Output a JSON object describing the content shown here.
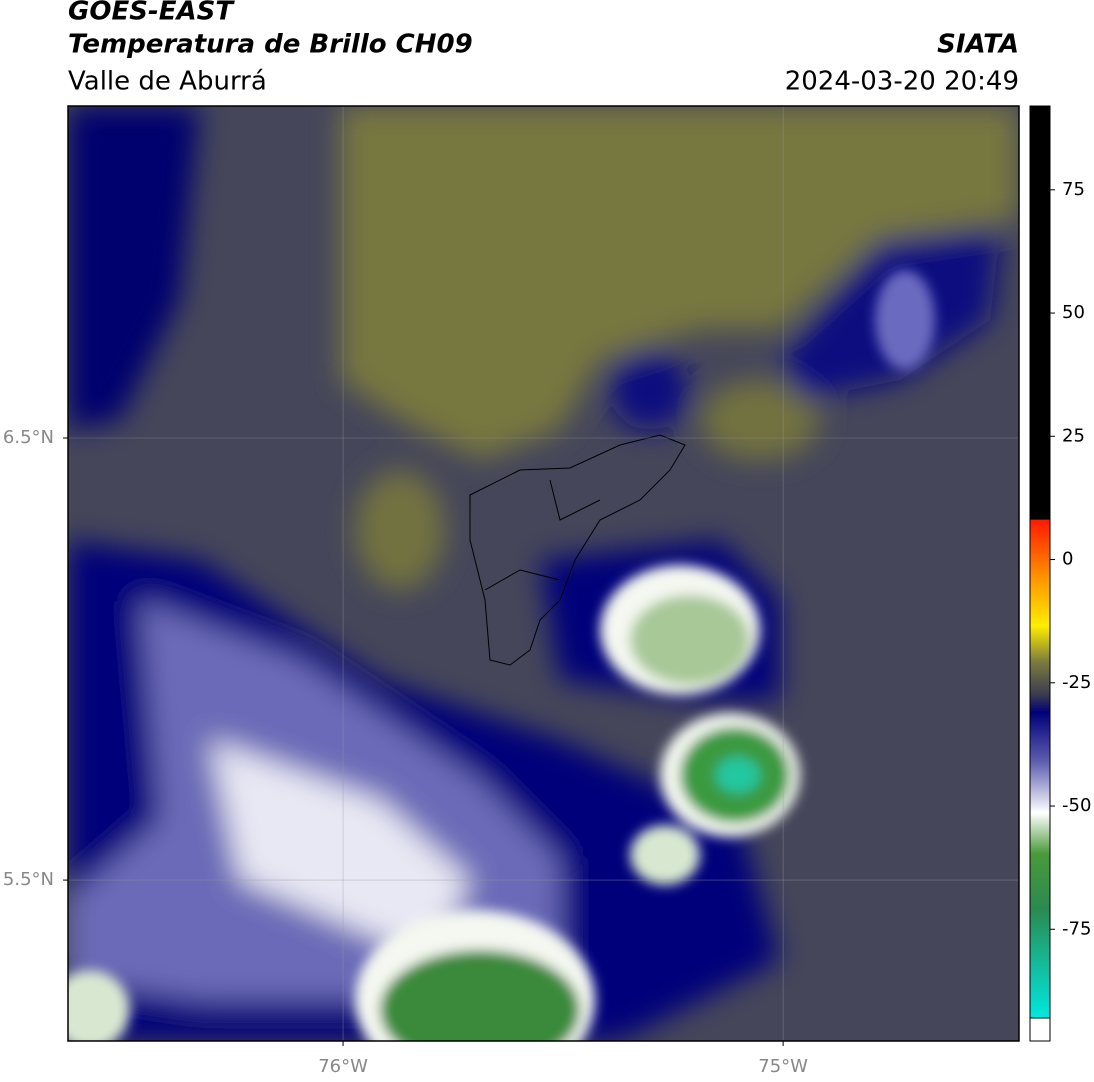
{
  "header": {
    "title": "GOES-EAST",
    "subtitle": "Temperatura de Brillo CH09",
    "region": "Valle de Aburrá",
    "source": "SIATA",
    "datetime": "2024-03-20 20:49"
  },
  "map": {
    "xlim": [
      -76.625,
      -74.464
    ],
    "ylim": [
      5.136,
      7.251
    ],
    "xticks": [
      {
        "value": -76,
        "label": "76°W"
      },
      {
        "value": -75,
        "label": "75°W"
      }
    ],
    "yticks": [
      {
        "value": 6.5,
        "label": "6.5°N"
      },
      {
        "value": 5.5,
        "label": "5.5°N"
      }
    ]
  },
  "colorbar": {
    "lim": [
      -93,
      92
    ],
    "ticks": [
      75,
      50,
      25,
      0,
      -25,
      -50,
      -75
    ]
  }
}
